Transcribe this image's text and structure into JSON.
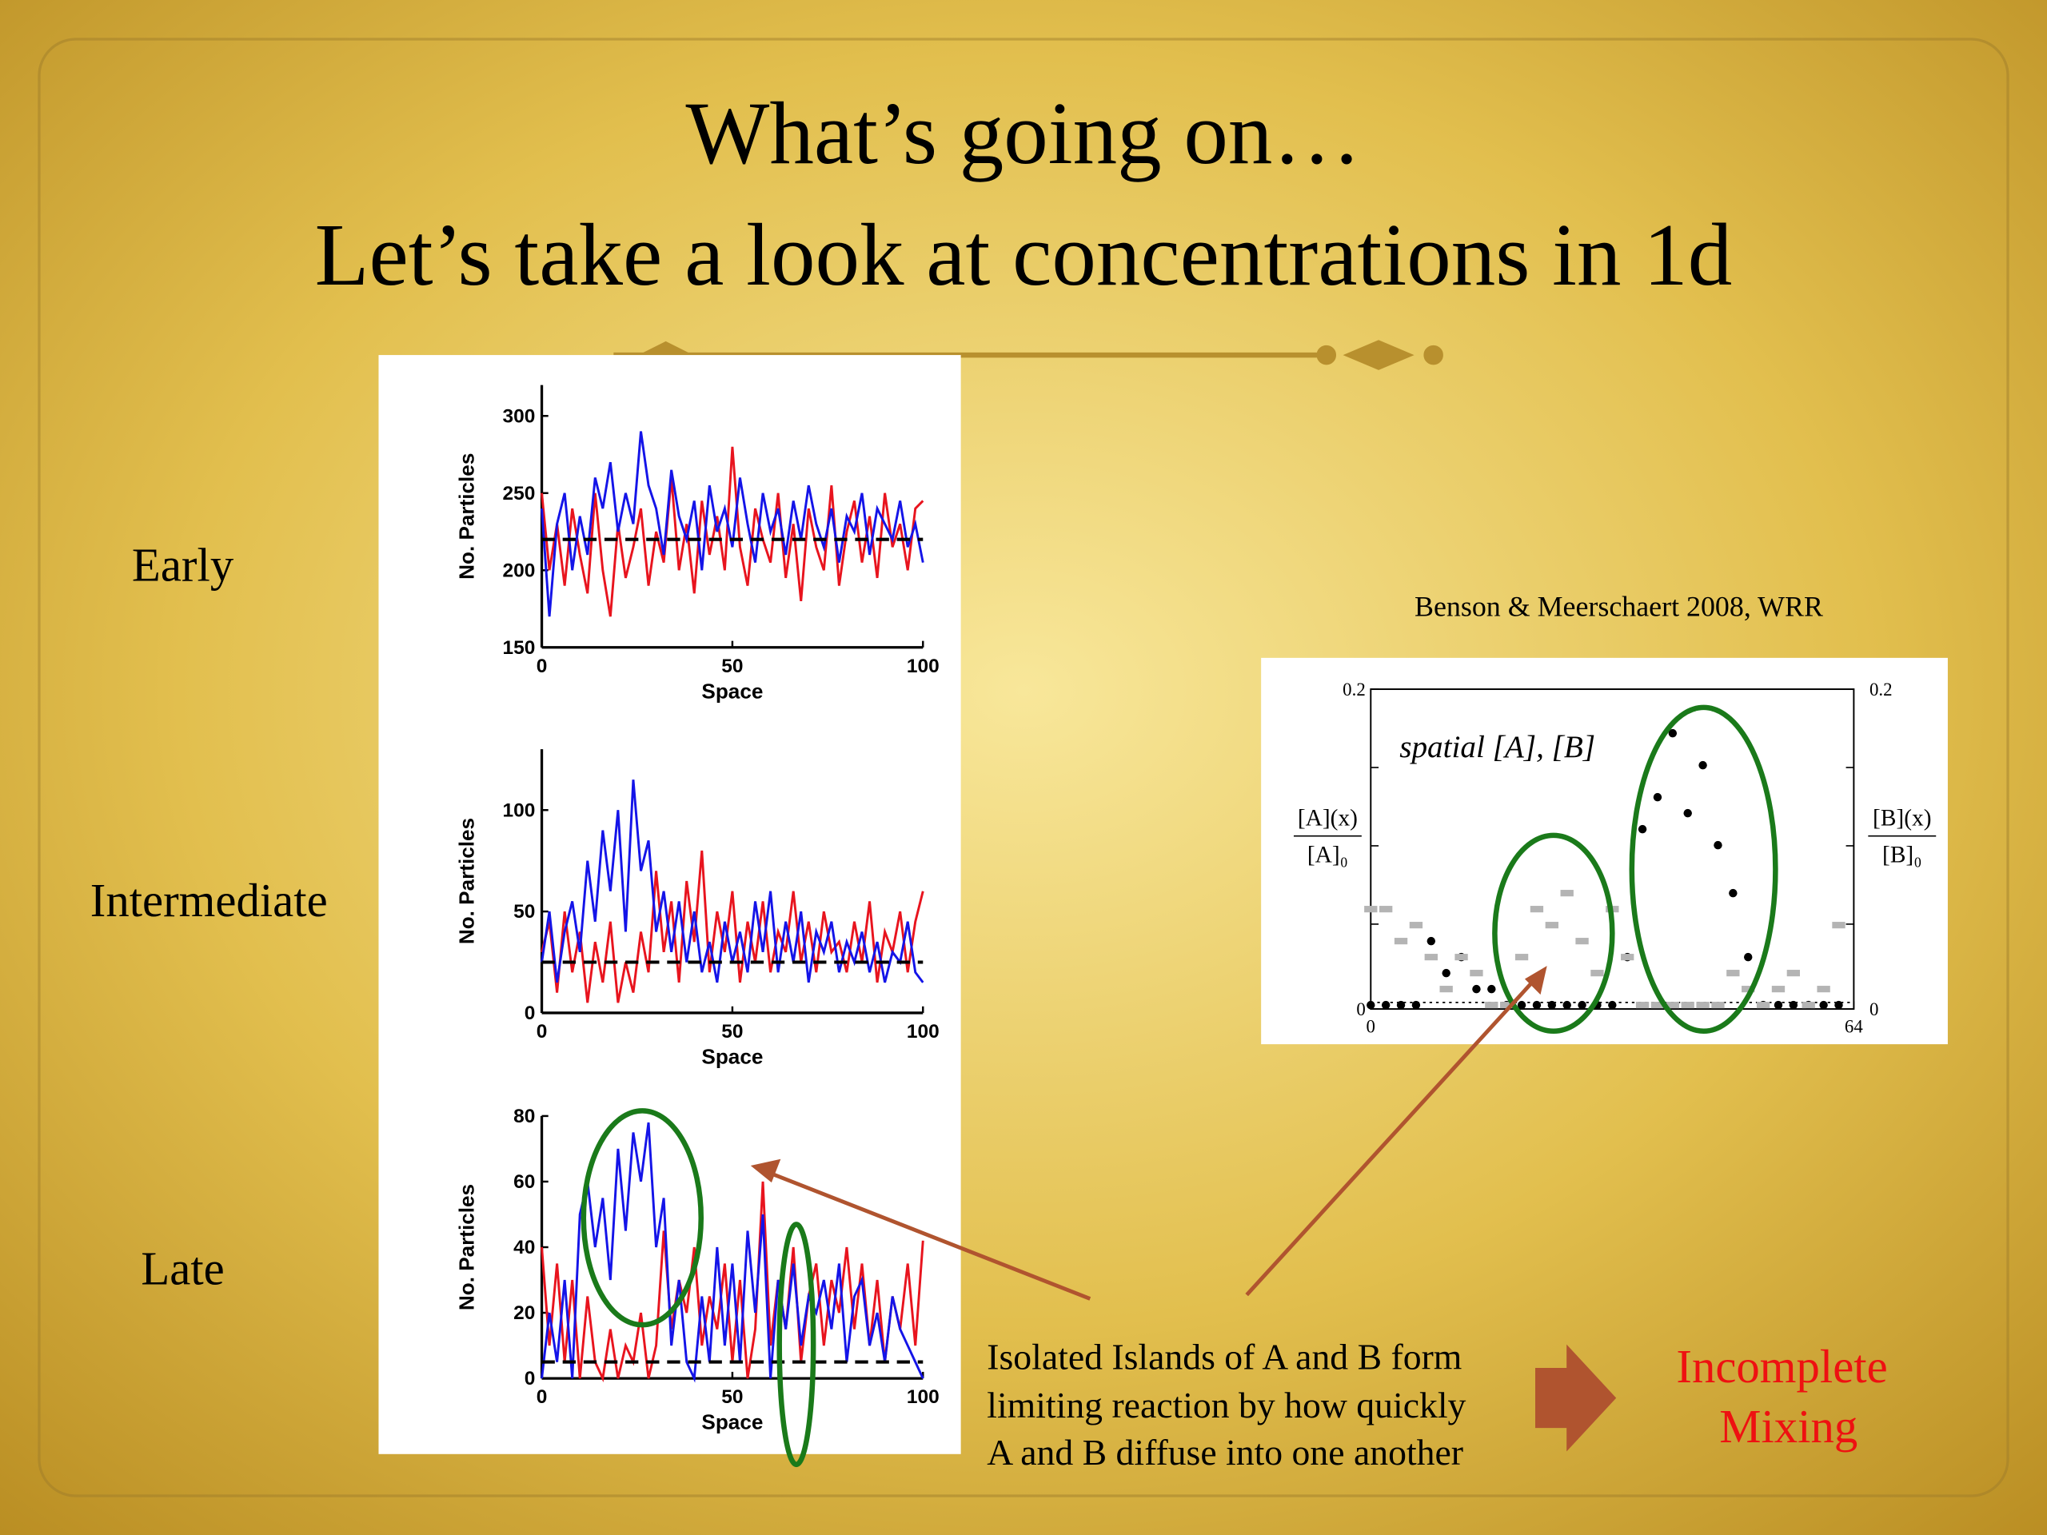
{
  "slide": {
    "title": [
      "What’s going on…",
      "Let’s take a look at concentrations in 1d"
    ],
    "labels": [
      "Early",
      "Intermediate",
      "Late"
    ],
    "citation": "Benson & Meerschaert 2008, WRR",
    "caption": [
      "Isolated Islands of A and B form",
      "limiting reaction by how quickly",
      "A and B diffuse into one another"
    ],
    "conclusion": [
      "Incomplete",
      "Mixing"
    ]
  },
  "chart_data": [
    {
      "type": "line",
      "xlabel": "Space",
      "ylabel": "No. Particles",
      "xlim": [
        0,
        100
      ],
      "xticks": [
        0,
        50,
        100
      ],
      "ylim": [
        150,
        320
      ],
      "yticks": [
        150,
        200,
        250,
        300
      ],
      "hline": 220,
      "x": [
        0,
        2,
        4,
        6,
        8,
        10,
        12,
        14,
        16,
        18,
        20,
        22,
        24,
        26,
        28,
        30,
        32,
        34,
        36,
        38,
        40,
        42,
        44,
        46,
        48,
        50,
        52,
        54,
        56,
        58,
        60,
        62,
        64,
        66,
        68,
        70,
        72,
        74,
        76,
        78,
        80,
        82,
        84,
        86,
        88,
        90,
        92,
        94,
        96,
        98,
        100
      ],
      "series": [
        {
          "color": "#e8141e",
          "values": [
            250,
            200,
            230,
            190,
            240,
            210,
            185,
            250,
            200,
            170,
            230,
            195,
            215,
            240,
            190,
            225,
            205,
            260,
            200,
            230,
            185,
            245,
            210,
            235,
            200,
            280,
            215,
            190,
            240,
            220,
            205,
            250,
            195,
            230,
            180,
            240,
            215,
            200,
            255,
            190,
            225,
            245,
            205,
            235,
            195,
            250,
            215,
            230,
            200,
            240,
            245
          ]
        },
        {
          "color": "#1414e8",
          "values": [
            240,
            170,
            230,
            250,
            200,
            235,
            210,
            260,
            240,
            270,
            225,
            250,
            230,
            290,
            255,
            240,
            210,
            265,
            235,
            220,
            245,
            200,
            255,
            225,
            240,
            215,
            260,
            230,
            205,
            250,
            225,
            240,
            210,
            245,
            220,
            255,
            230,
            215,
            240,
            205,
            235,
            225,
            250,
            210,
            240,
            230,
            220,
            245,
            215,
            230,
            205
          ]
        }
      ]
    },
    {
      "type": "line",
      "xlabel": "Space",
      "ylabel": "No. Particles",
      "xlim": [
        0,
        100
      ],
      "xticks": [
        0,
        50,
        100
      ],
      "ylim": [
        0,
        130
      ],
      "yticks": [
        0,
        50,
        100
      ],
      "hline": 25,
      "x": [
        0,
        2,
        4,
        6,
        8,
        10,
        12,
        14,
        16,
        18,
        20,
        22,
        24,
        26,
        28,
        30,
        32,
        34,
        36,
        38,
        40,
        42,
        44,
        46,
        48,
        50,
        52,
        54,
        56,
        58,
        60,
        62,
        64,
        66,
        68,
        70,
        72,
        74,
        76,
        78,
        80,
        82,
        84,
        86,
        88,
        90,
        92,
        94,
        96,
        98,
        100
      ],
      "series": [
        {
          "color": "#e8141e",
          "values": [
            30,
            45,
            10,
            50,
            20,
            40,
            5,
            35,
            15,
            45,
            5,
            25,
            10,
            40,
            20,
            70,
            30,
            55,
            15,
            65,
            35,
            80,
            20,
            50,
            30,
            60,
            15,
            45,
            25,
            55,
            20,
            40,
            30,
            60,
            25,
            45,
            20,
            50,
            30,
            35,
            20,
            45,
            25,
            55,
            15,
            40,
            30,
            50,
            20,
            45,
            60
          ]
        },
        {
          "color": "#1414e8",
          "values": [
            25,
            50,
            15,
            40,
            55,
            30,
            75,
            45,
            90,
            60,
            100,
            40,
            115,
            70,
            85,
            40,
            60,
            30,
            55,
            25,
            50,
            20,
            35,
            15,
            45,
            25,
            40,
            20,
            55,
            30,
            60,
            20,
            45,
            25,
            50,
            15,
            40,
            30,
            45,
            20,
            35,
            25,
            40,
            20,
            35,
            15,
            30,
            25,
            45,
            20,
            15
          ]
        }
      ]
    },
    {
      "type": "line",
      "xlabel": "Space",
      "ylabel": "No. Particles",
      "xlim": [
        0,
        100
      ],
      "xticks": [
        0,
        50,
        100
      ],
      "ylim": [
        0,
        80
      ],
      "yticks": [
        0,
        20,
        40,
        60,
        80
      ],
      "hline": 5,
      "x": [
        0,
        2,
        4,
        6,
        8,
        10,
        12,
        14,
        16,
        18,
        20,
        22,
        24,
        26,
        28,
        30,
        32,
        34,
        36,
        38,
        40,
        42,
        44,
        46,
        48,
        50,
        52,
        54,
        56,
        58,
        60,
        62,
        64,
        66,
        68,
        70,
        72,
        74,
        76,
        78,
        80,
        82,
        84,
        86,
        88,
        90,
        92,
        94,
        96,
        98,
        100
      ],
      "series": [
        {
          "color": "#e8141e",
          "values": [
            40,
            10,
            35,
            5,
            30,
            0,
            25,
            5,
            0,
            15,
            0,
            10,
            5,
            20,
            0,
            10,
            45,
            15,
            30,
            20,
            40,
            10,
            25,
            15,
            35,
            5,
            30,
            0,
            15,
            60,
            10,
            30,
            15,
            40,
            5,
            25,
            35,
            10,
            30,
            20,
            40,
            15,
            35,
            10,
            30,
            5,
            25,
            15,
            35,
            10,
            42
          ]
        },
        {
          "color": "#1414e8",
          "values": [
            0,
            20,
            5,
            30,
            0,
            50,
            60,
            40,
            55,
            30,
            70,
            45,
            75,
            60,
            78,
            40,
            55,
            10,
            30,
            5,
            0,
            25,
            5,
            40,
            10,
            35,
            5,
            45,
            20,
            50,
            0,
            30,
            15,
            35,
            10,
            25,
            20,
            30,
            15,
            35,
            5,
            25,
            30,
            10,
            20,
            5,
            25,
            15,
            10,
            5,
            0
          ]
        }
      ]
    },
    {
      "type": "scatter",
      "annotation": "spatial [A], [B]",
      "ylabel": [
        "[A](x)",
        "[A]₀"
      ],
      "y2label": [
        "[B](x)",
        "[B]₀"
      ],
      "xlim": [
        0,
        64
      ],
      "xticks": [
        0,
        64
      ],
      "ylim": [
        0,
        0.2
      ],
      "yticks": [
        0,
        0.2
      ],
      "x": [
        0,
        2,
        4,
        6,
        8,
        10,
        12,
        14,
        16,
        18,
        20,
        22,
        24,
        26,
        28,
        30,
        32,
        34,
        36,
        38,
        40,
        42,
        44,
        46,
        48,
        50,
        52,
        54,
        56,
        58,
        60,
        62
      ],
      "series": [
        {
          "color": "#000000",
          "values": [
            0,
            0,
            0,
            0,
            0.04,
            0.02,
            0.03,
            0.01,
            0.01,
            0,
            0,
            0,
            0,
            0,
            0,
            0,
            0,
            0.03,
            0.11,
            0.13,
            0.17,
            0.12,
            0.15,
            0.1,
            0.07,
            0.03,
            0,
            0,
            0,
            0,
            0,
            0
          ]
        },
        {
          "color": "#b4b4b4",
          "values": [
            0.06,
            0.06,
            0.04,
            0.05,
            0.03,
            0.01,
            0.03,
            0.02,
            0,
            0,
            0.03,
            0.06,
            0.05,
            0.07,
            0.04,
            0.02,
            0.06,
            0.03,
            0,
            0,
            0,
            0,
            0,
            0,
            0.02,
            0.01,
            0,
            0.01,
            0.02,
            0,
            0.01,
            0.05
          ]
        }
      ]
    }
  ]
}
